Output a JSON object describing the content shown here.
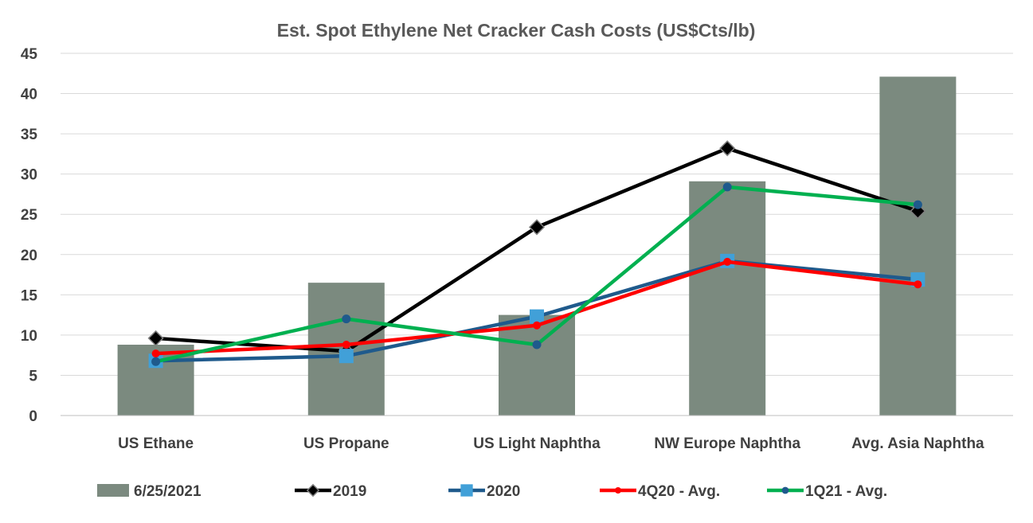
{
  "chart_data": {
    "type": "bar+line",
    "title": "Est. Spot Ethylene Net Cracker Cash Costs (US$Cts/lb)",
    "categories": [
      "US Ethane",
      "US Propane",
      "US Light Naphtha",
      "NW Europe Naphtha",
      "Avg. Asia Naphtha"
    ],
    "ylim": [
      0,
      45
    ],
    "yticks": [
      0,
      5,
      10,
      15,
      20,
      25,
      30,
      35,
      40,
      45
    ],
    "grid": true,
    "legend_position": "bottom",
    "series": [
      {
        "name": "6/25/2021",
        "kind": "bar",
        "color": "#7b8a7f",
        "values": [
          8.8,
          16.5,
          12.5,
          29.1,
          42.1
        ]
      },
      {
        "name": "2019",
        "kind": "line",
        "marker": "diamond",
        "color": "#000000",
        "values": [
          9.6,
          8.0,
          23.4,
          33.2,
          25.4
        ]
      },
      {
        "name": "2020",
        "kind": "line",
        "marker": "square",
        "color": "#1f5a8c",
        "marker_color": "#41a0d8",
        "values": [
          6.8,
          7.4,
          12.3,
          19.2,
          16.9
        ]
      },
      {
        "name": "4Q20 - Avg.",
        "kind": "line",
        "marker": "circle",
        "color": "#ff0000",
        "values": [
          7.7,
          8.8,
          11.2,
          19.1,
          16.3
        ]
      },
      {
        "name": "1Q21 - Avg.",
        "kind": "line",
        "marker": "circle",
        "color": "#00b050",
        "marker_color": "#1f5a8c",
        "values": [
          6.7,
          12.0,
          8.8,
          28.4,
          26.2
        ]
      }
    ]
  }
}
